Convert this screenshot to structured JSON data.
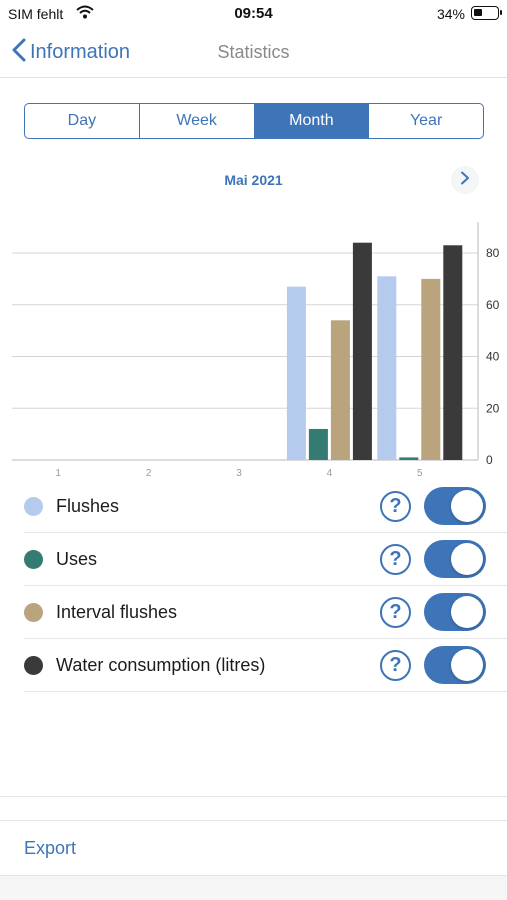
{
  "status": {
    "carrier": "SIM fehlt",
    "time": "09:54",
    "battery": "34%"
  },
  "nav": {
    "back_label": "Information",
    "title": "Statistics"
  },
  "segments": [
    {
      "label": "Day",
      "active": false
    },
    {
      "label": "Week",
      "active": false
    },
    {
      "label": "Month",
      "active": true
    },
    {
      "label": "Year",
      "active": false
    }
  ],
  "period": {
    "label": "Mai 2021"
  },
  "colors": {
    "accent": "#3e74b8",
    "flushes": "#b5cbee",
    "uses": "#347b72",
    "interval_flushes": "#b9a47e",
    "water": "#3a3a3a"
  },
  "chart_data": {
    "type": "bar",
    "categories": [
      "1",
      "2",
      "3",
      "4",
      "5"
    ],
    "series": [
      {
        "name": "Flushes",
        "color": "#b5cbee",
        "values": [
          0,
          0,
          0,
          67,
          71
        ]
      },
      {
        "name": "Uses",
        "color": "#347b72",
        "values": [
          0,
          0,
          0,
          12,
          1
        ]
      },
      {
        "name": "Interval flushes",
        "color": "#b9a47e",
        "values": [
          0,
          0,
          0,
          54,
          70
        ]
      },
      {
        "name": "Water consumption (litres)",
        "color": "#3a3a3a",
        "values": [
          0,
          0,
          0,
          84,
          83
        ]
      }
    ],
    "yticks": [
      "0",
      "20",
      "40",
      "60",
      "80"
    ],
    "ylim": [
      0,
      92
    ],
    "y_axis_position": "right",
    "grid": true
  },
  "legend": [
    {
      "label": "Flushes",
      "color": "#b5cbee",
      "help": "?",
      "enabled": true
    },
    {
      "label": "Uses",
      "color": "#347b72",
      "help": "?",
      "enabled": true
    },
    {
      "label": "Interval flushes",
      "color": "#b9a47e",
      "help": "?",
      "enabled": true
    },
    {
      "label": "Water consumption (litres)",
      "color": "#3a3a3a",
      "help": "?",
      "enabled": true
    }
  ],
  "export": {
    "label": "Export"
  }
}
